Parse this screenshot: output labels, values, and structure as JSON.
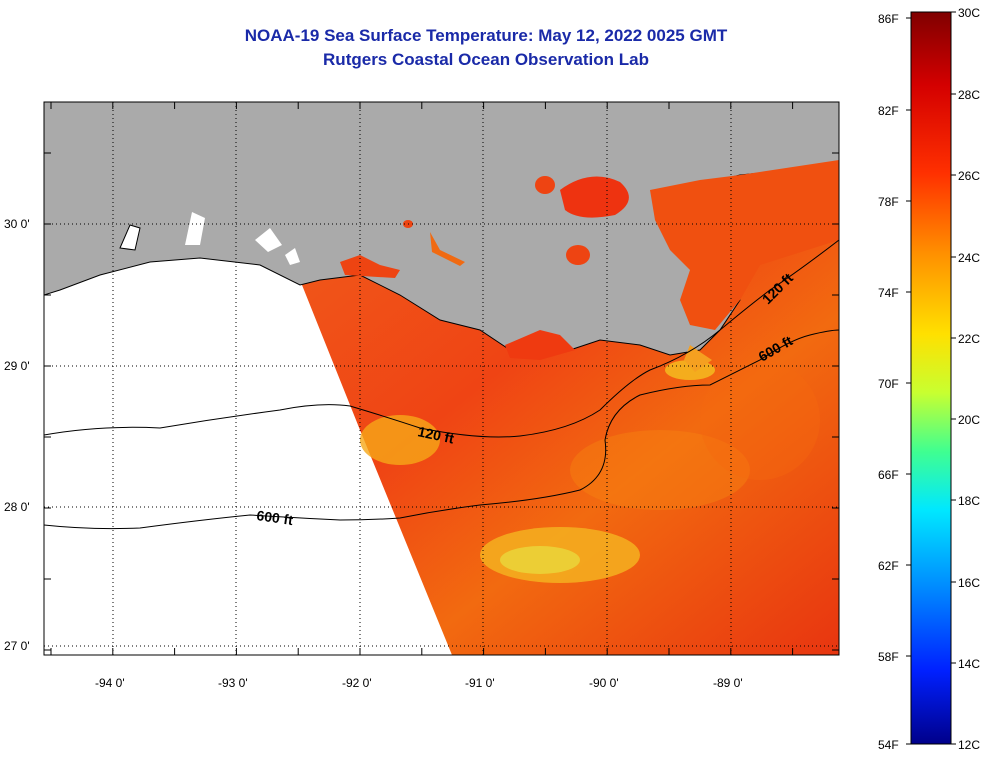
{
  "title": {
    "line1": "NOAA-19 Sea Surface Temperature:  May 12, 2022 0025 GMT",
    "line2": "Rutgers Coastal Ocean Observation Lab"
  },
  "map": {
    "lat_labels": [
      "30 0'",
      "29 0'",
      "28 0'",
      "27 0'"
    ],
    "lon_labels": [
      "-94 0'",
      "-93 0'",
      "-92 0'",
      "-91 0'",
      "-90 0'",
      "-89 0'"
    ],
    "contour_labels": [
      "120 ft",
      "600 ft",
      "120 ft",
      "600 ft"
    ]
  },
  "colorbar": {
    "f_labels": [
      "86F",
      "82F",
      "78F",
      "74F",
      "70F",
      "66F",
      "62F",
      "58F",
      "54F"
    ],
    "c_labels": [
      "30C",
      "28C",
      "26C",
      "24C",
      "22C",
      "20C",
      "18C",
      "16C",
      "14C",
      "12C"
    ]
  },
  "colors": {
    "land": "#aaaaaa",
    "title": "#1a2aa8",
    "sst_warm": "#ee3a10",
    "sst_mid": "#f57a08"
  }
}
